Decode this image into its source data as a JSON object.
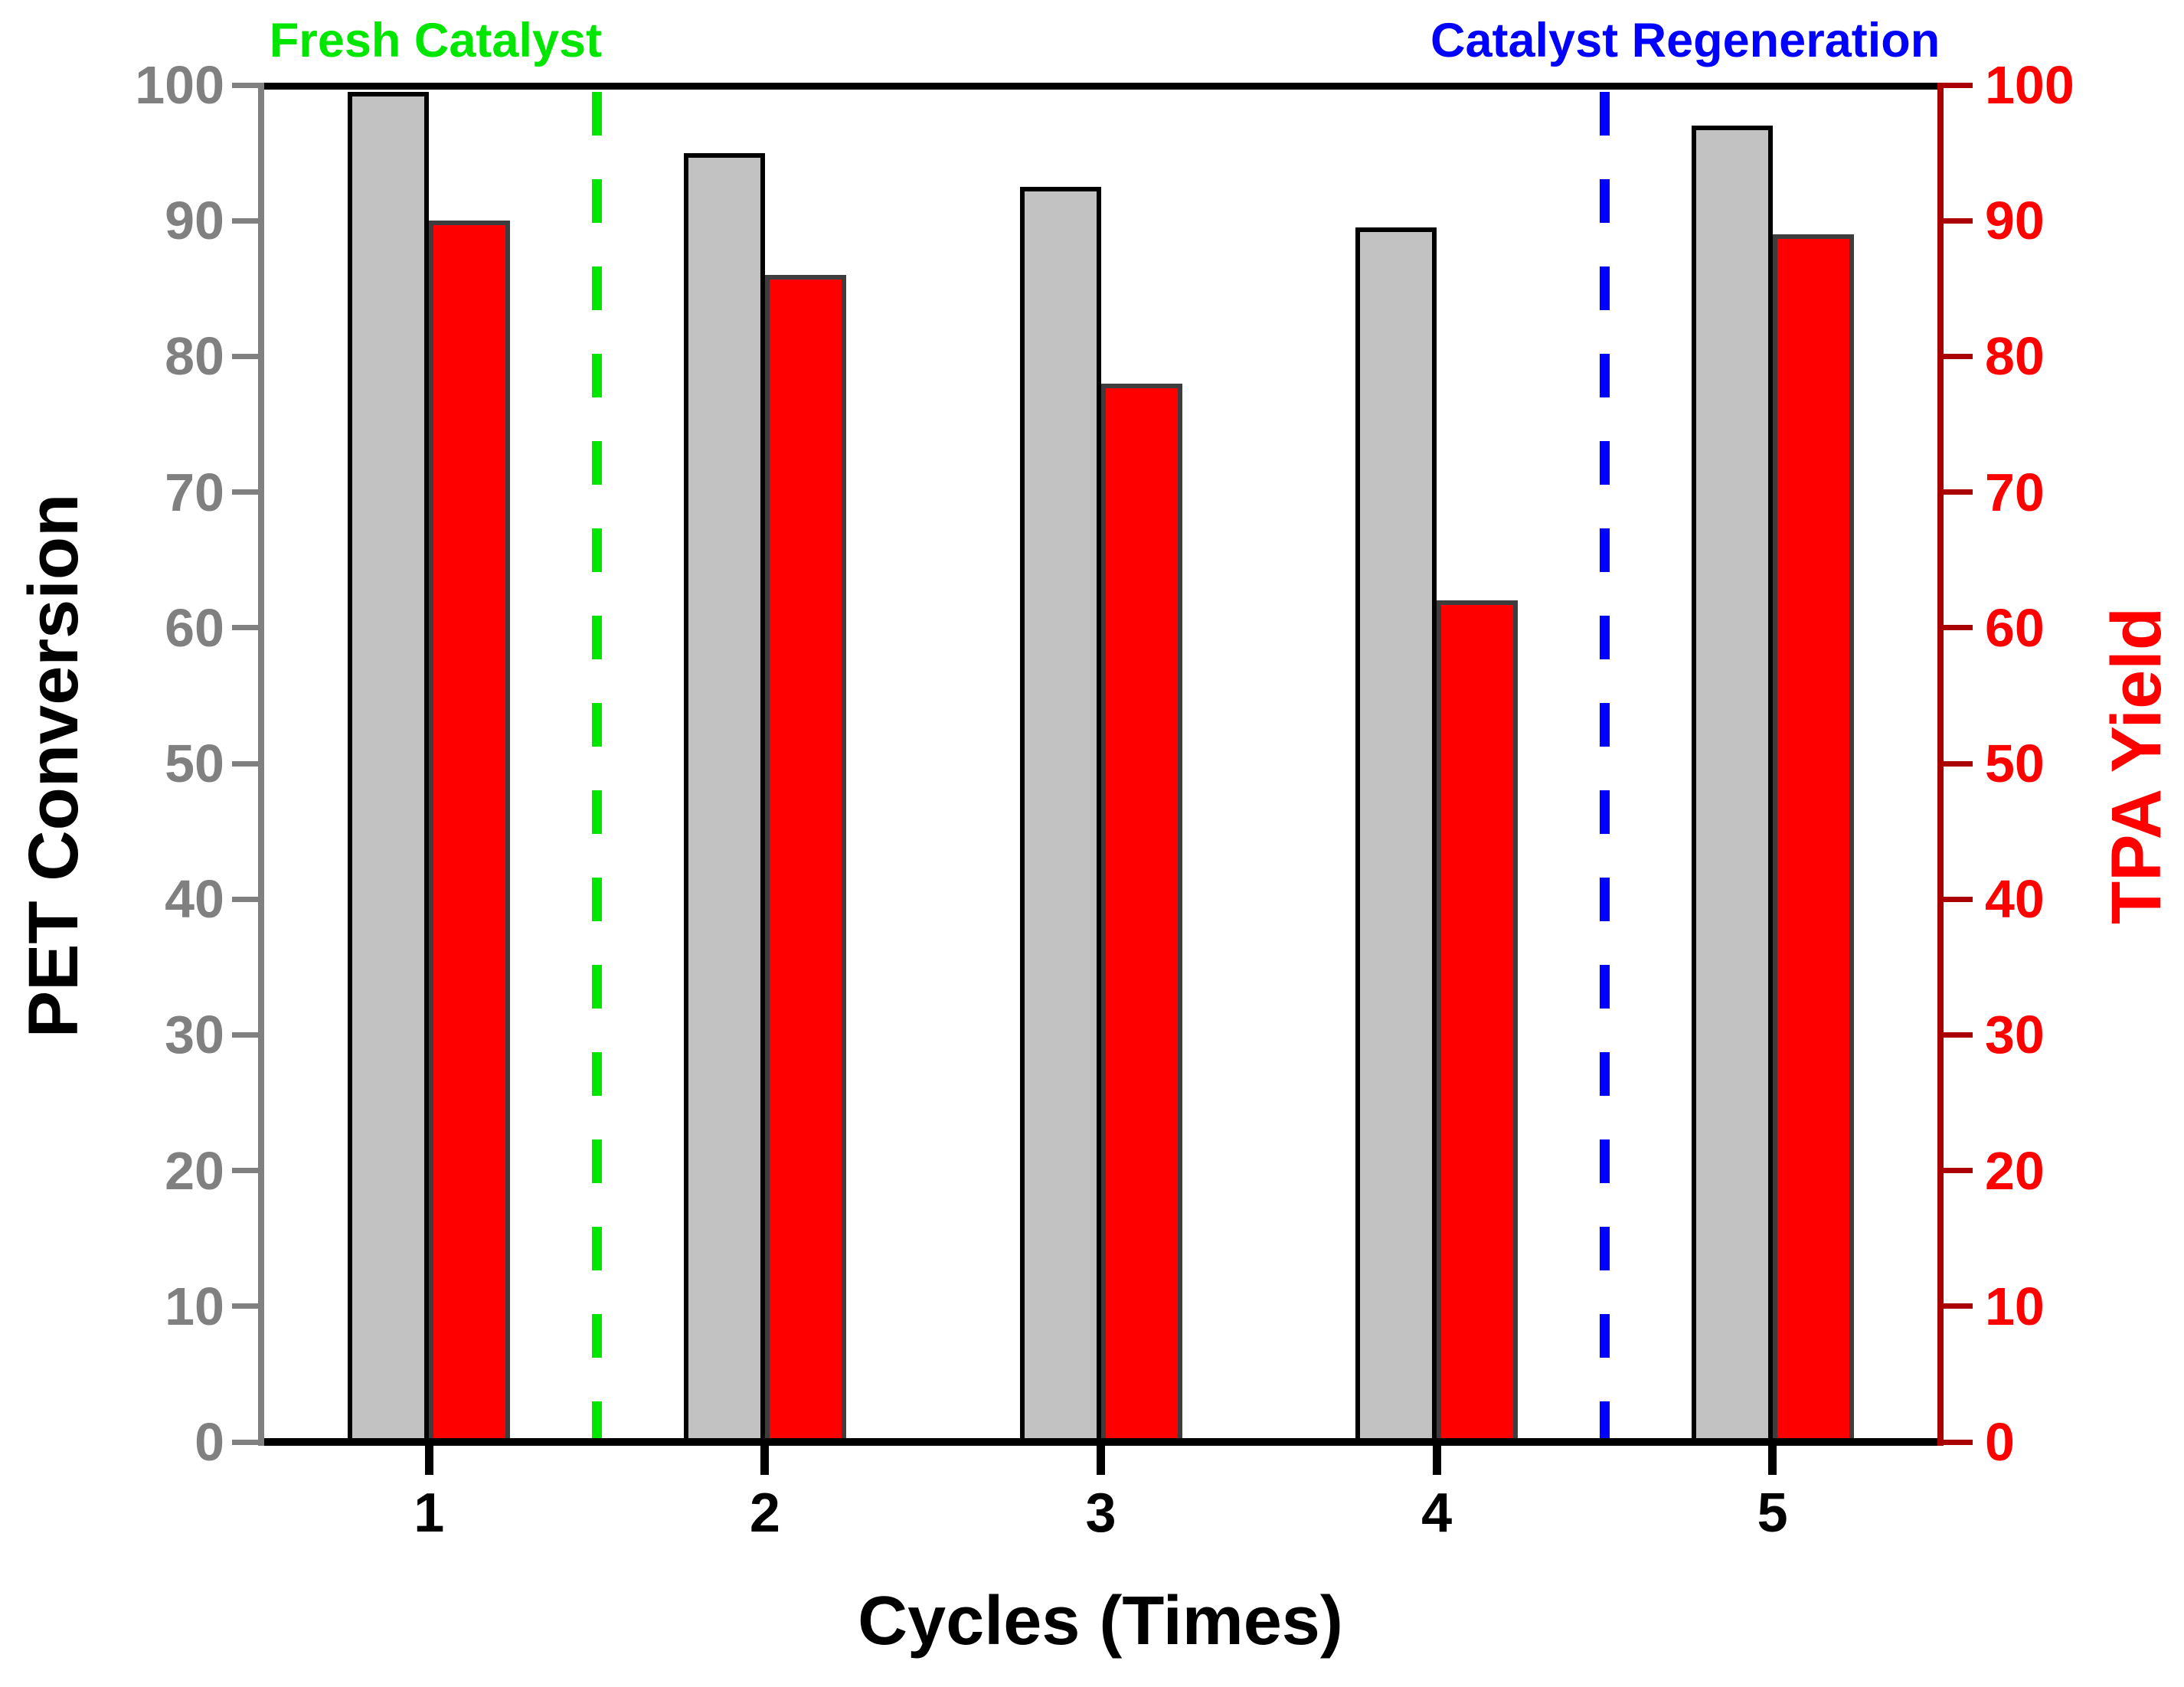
{
  "chart_data": {
    "type": "bar",
    "title": "",
    "categories": [
      "1",
      "2",
      "3",
      "4",
      "5"
    ],
    "series": [
      {
        "name": "PET Conversion",
        "axis": "left",
        "fill_color": "#c2c2c2",
        "border_color": "#000000",
        "values": [
          99.5,
          95,
          92.5,
          89.5,
          97
        ]
      },
      {
        "name": "TPA Yield",
        "axis": "right",
        "fill_color": "#ff0000",
        "border_color": "#3d3d3d",
        "values": [
          90,
          86,
          78,
          62,
          89
        ]
      }
    ],
    "xlabel": "Cycles (Times)",
    "ylabel_left": "PET Conversion",
    "ylabel_right": "TPA Yield",
    "ylim": [
      0,
      100
    ],
    "yticks": [
      0,
      10,
      20,
      30,
      40,
      50,
      60,
      70,
      80,
      90,
      100
    ],
    "xlim": [
      0.5,
      5.5
    ],
    "grid": false,
    "legend": "none",
    "annotations": [
      {
        "text": "Fresh Catalyst",
        "line_x": 1.5,
        "color": "#00e600",
        "line_style": "dashed",
        "label_align": "right-of-nothing-ends-at-line"
      },
      {
        "text": "Catalyst Regeneration",
        "line_x": 4.5,
        "color": "#0000ff",
        "line_style": "dashed",
        "label_align": "starts-left-of-line"
      }
    ],
    "axis_colors": {
      "left_axis_line": "#808080",
      "left_tick_labels": "#808080",
      "left_title": "#000000",
      "right_axis_line": "#aa0000",
      "right_tick_labels": "#ff0000",
      "right_title": "#ff0000",
      "top_axis_line": "#000000",
      "bottom_axis_line": "#000000",
      "x_tick_labels": "#000000",
      "x_title": "#000000"
    }
  }
}
